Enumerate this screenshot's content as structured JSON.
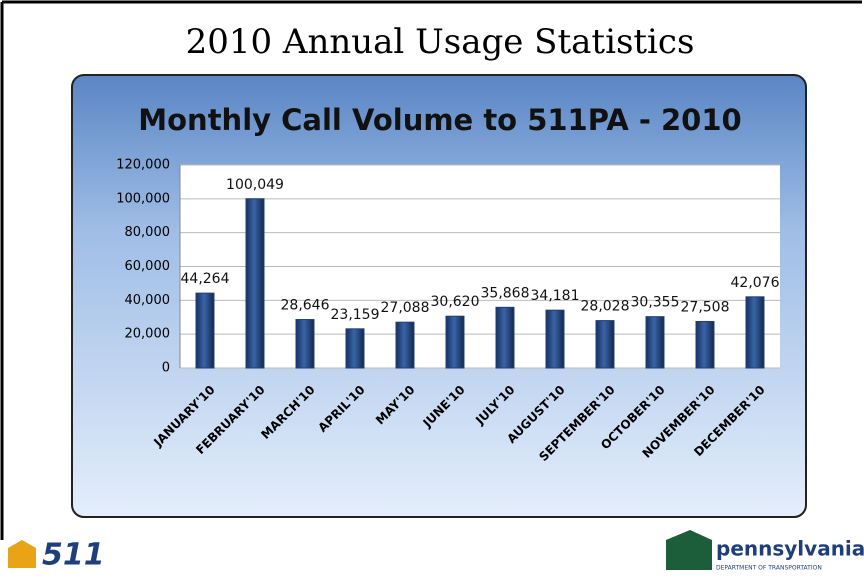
{
  "page": {
    "title": "2010 Annual Usage Statistics",
    "left_logo": "511",
    "right_logo": "pennsylvania",
    "right_logo_subtitle": "DEPARTMENT OF TRANSPORTATION"
  },
  "chart_data": {
    "type": "bar",
    "title": "Monthly Call Volume to 511PA - 2010",
    "categories": [
      "JANUARY'10",
      "FEBRUARY'10",
      "MARCH'10",
      "APRIL'10",
      "MAY'10",
      "JUNE'10",
      "JULY'10",
      "AUGUST'10",
      "SEPTEMBER'10",
      "OCTOBER'10",
      "NOVEMBER'10",
      "DECEMBER'10"
    ],
    "values": [
      44264,
      100049,
      28646,
      23159,
      27088,
      30620,
      35868,
      34181,
      28028,
      30355,
      27508,
      42076
    ],
    "value_labels": [
      "44,264",
      "100,049",
      "28,646",
      "23,159",
      "27,088",
      "30,620",
      "35,868",
      "34,181",
      "28,028",
      "30,355",
      "27,508",
      "42,076"
    ],
    "color": "#1f3f7a",
    "ylim": [
      0,
      120000
    ],
    "yticks": [
      {
        "value": 0,
        "label": "0"
      },
      {
        "value": 20000,
        "label": "20,000"
      },
      {
        "value": 40000,
        "label": "40,000"
      },
      {
        "value": 60000,
        "label": "60,000"
      },
      {
        "value": 80000,
        "label": "80,000"
      },
      {
        "value": 100000,
        "label": "100,000"
      },
      {
        "value": 120000,
        "label": "120,000"
      }
    ],
    "grid": true
  }
}
